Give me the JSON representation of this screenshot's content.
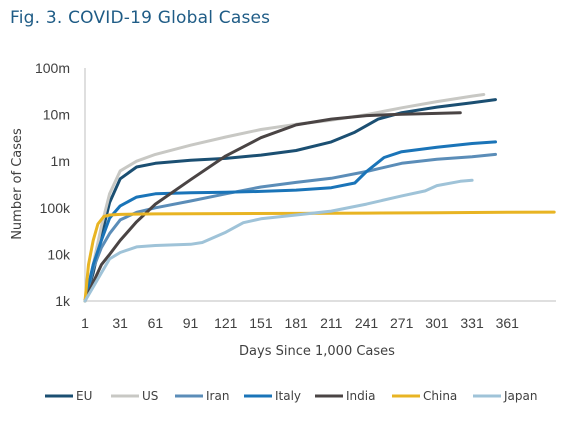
{
  "title": "Fig. 3. COVID-19 Global Cases",
  "chart_data": {
    "type": "line",
    "xlabel": "Days Since 1,000 Cases",
    "ylabel": "Number of Cases",
    "xlim": [
      1,
      400
    ],
    "ylim": [
      1000,
      100000000
    ],
    "yscale": "log",
    "x_ticks": [
      1,
      31,
      61,
      91,
      121,
      151,
      181,
      211,
      241,
      271,
      301,
      331,
      361
    ],
    "y_ticks": [
      {
        "value": 1000,
        "label": "1k"
      },
      {
        "value": 10000,
        "label": "10k"
      },
      {
        "value": 100000,
        "label": "100k"
      },
      {
        "value": 1000000,
        "label": "1m"
      },
      {
        "value": 10000000,
        "label": "10m"
      },
      {
        "value": 100000000,
        "label": "100m"
      }
    ],
    "grid": false,
    "legend": "bottom",
    "series": [
      {
        "name": "EU",
        "color": "#1b4f72",
        "points": [
          [
            1,
            1000
          ],
          [
            8,
            4000
          ],
          [
            15,
            25000
          ],
          [
            22,
            130000
          ],
          [
            31,
            420000
          ],
          [
            45,
            750000
          ],
          [
            61,
            900000
          ],
          [
            91,
            1050000
          ],
          [
            121,
            1150000
          ],
          [
            151,
            1350000
          ],
          [
            181,
            1700000
          ],
          [
            211,
            2600000
          ],
          [
            231,
            4200000
          ],
          [
            251,
            8000000
          ],
          [
            271,
            11000000
          ],
          [
            301,
            14500000
          ],
          [
            331,
            18000000
          ],
          [
            351,
            21000000
          ]
        ]
      },
      {
        "name": "US",
        "color": "#c8c8c4",
        "points": [
          [
            1,
            1000
          ],
          [
            8,
            6000
          ],
          [
            15,
            40000
          ],
          [
            22,
            200000
          ],
          [
            31,
            620000
          ],
          [
            45,
            1000000
          ],
          [
            61,
            1400000
          ],
          [
            91,
            2200000
          ],
          [
            121,
            3300000
          ],
          [
            151,
            4800000
          ],
          [
            181,
            6200000
          ],
          [
            211,
            7600000
          ],
          [
            241,
            10000000
          ],
          [
            271,
            14000000
          ],
          [
            301,
            19000000
          ],
          [
            331,
            25000000
          ],
          [
            341,
            27000000
          ]
        ]
      },
      {
        "name": "Iran",
        "color": "#5b8db8",
        "points": [
          [
            1,
            1000
          ],
          [
            8,
            5000
          ],
          [
            15,
            14000
          ],
          [
            22,
            28000
          ],
          [
            31,
            55000
          ],
          [
            45,
            80000
          ],
          [
            61,
            100000
          ],
          [
            91,
            140000
          ],
          [
            121,
            200000
          ],
          [
            151,
            280000
          ],
          [
            181,
            350000
          ],
          [
            211,
            430000
          ],
          [
            241,
            600000
          ],
          [
            271,
            900000
          ],
          [
            301,
            1100000
          ],
          [
            331,
            1250000
          ],
          [
            351,
            1400000
          ]
        ]
      },
      {
        "name": "Italy",
        "color": "#1a74b8",
        "points": [
          [
            1,
            1000
          ],
          [
            8,
            6000
          ],
          [
            15,
            20000
          ],
          [
            22,
            60000
          ],
          [
            31,
            110000
          ],
          [
            45,
            170000
          ],
          [
            61,
            200000
          ],
          [
            91,
            210000
          ],
          [
            121,
            215000
          ],
          [
            151,
            225000
          ],
          [
            181,
            240000
          ],
          [
            211,
            270000
          ],
          [
            231,
            340000
          ],
          [
            241,
            600000
          ],
          [
            256,
            1200000
          ],
          [
            271,
            1600000
          ],
          [
            301,
            2000000
          ],
          [
            331,
            2400000
          ],
          [
            351,
            2600000
          ]
        ]
      },
      {
        "name": "India",
        "color": "#4a4444",
        "points": [
          [
            1,
            1000
          ],
          [
            8,
            2500
          ],
          [
            15,
            6000
          ],
          [
            22,
            10000
          ],
          [
            31,
            20000
          ],
          [
            45,
            50000
          ],
          [
            61,
            120000
          ],
          [
            91,
            400000
          ],
          [
            121,
            1300000
          ],
          [
            151,
            3200000
          ],
          [
            181,
            6000000
          ],
          [
            211,
            8000000
          ],
          [
            241,
            9500000
          ],
          [
            271,
            10200000
          ],
          [
            301,
            10600000
          ],
          [
            321,
            11000000
          ]
        ]
      },
      {
        "name": "China",
        "color": "#e8b423",
        "points": [
          [
            1,
            1000
          ],
          [
            4,
            6000
          ],
          [
            8,
            20000
          ],
          [
            12,
            45000
          ],
          [
            17,
            65000
          ],
          [
            22,
            70000
          ],
          [
            31,
            72000
          ],
          [
            61,
            74000
          ],
          [
            121,
            75000
          ],
          [
            181,
            76000
          ],
          [
            241,
            77000
          ],
          [
            301,
            78000
          ],
          [
            361,
            80000
          ],
          [
            401,
            81000
          ]
        ]
      },
      {
        "name": "Japan",
        "color": "#9fc3d8",
        "points": [
          [
            1,
            1000
          ],
          [
            8,
            2000
          ],
          [
            15,
            4000
          ],
          [
            22,
            8000
          ],
          [
            31,
            11000
          ],
          [
            45,
            14500
          ],
          [
            61,
            15500
          ],
          [
            91,
            16500
          ],
          [
            101,
            18000
          ],
          [
            121,
            30000
          ],
          [
            136,
            48000
          ],
          [
            151,
            58000
          ],
          [
            181,
            70000
          ],
          [
            211,
            85000
          ],
          [
            241,
            120000
          ],
          [
            271,
            180000
          ],
          [
            291,
            230000
          ],
          [
            301,
            300000
          ],
          [
            321,
            370000
          ],
          [
            331,
            390000
          ]
        ]
      }
    ]
  }
}
